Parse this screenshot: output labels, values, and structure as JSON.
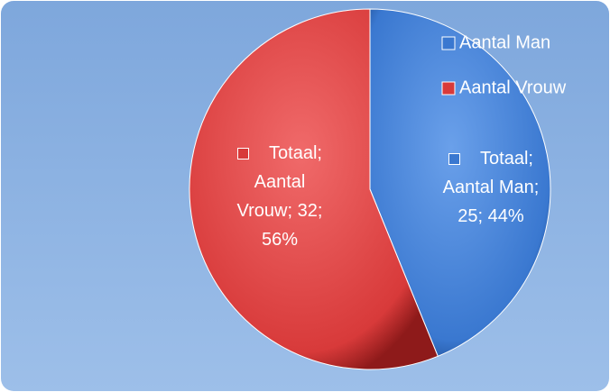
{
  "chart_data": {
    "type": "pie",
    "series_name": "Totaal",
    "categories": [
      "Aantal Man",
      "Aantal Vrouw"
    ],
    "values": [
      25,
      32
    ],
    "percentages": [
      44,
      56
    ],
    "percentage_labels": [
      "44%",
      "56%"
    ],
    "label_separator": "; ",
    "colors": [
      "#3a78d0",
      "#d83a3a"
    ],
    "legend": "top-right"
  }
}
